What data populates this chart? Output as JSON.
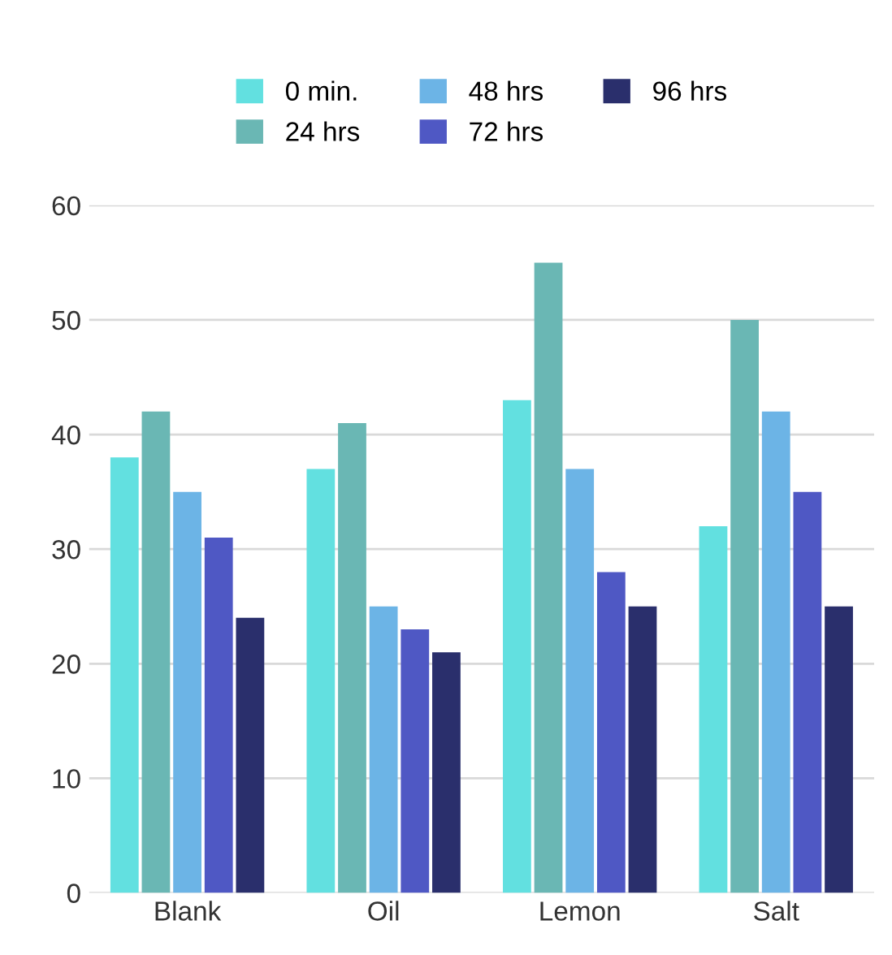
{
  "chart_data": {
    "type": "bar",
    "categories": [
      "Blank",
      "Oil",
      "Lemon",
      "Salt"
    ],
    "series": [
      {
        "name": "0 min.",
        "color": "#62e0e0",
        "values": [
          38,
          37,
          43,
          32
        ]
      },
      {
        "name": "24 hrs",
        "color": "#6ab7b4",
        "values": [
          42,
          41,
          55,
          50
        ]
      },
      {
        "name": "48 hrs",
        "color": "#6cb4e6",
        "values": [
          35,
          25,
          37,
          42
        ]
      },
      {
        "name": "72 hrs",
        "color": "#4f58c4",
        "values": [
          31,
          23,
          28,
          35
        ]
      },
      {
        "name": "96 hrs",
        "color": "#2a2f6c",
        "values": [
          24,
          21,
          25,
          25
        ]
      }
    ],
    "ylim": [
      0,
      60
    ],
    "yticks": [
      0,
      10,
      20,
      30,
      40,
      50,
      60
    ],
    "grid": "y",
    "legend": "top"
  }
}
